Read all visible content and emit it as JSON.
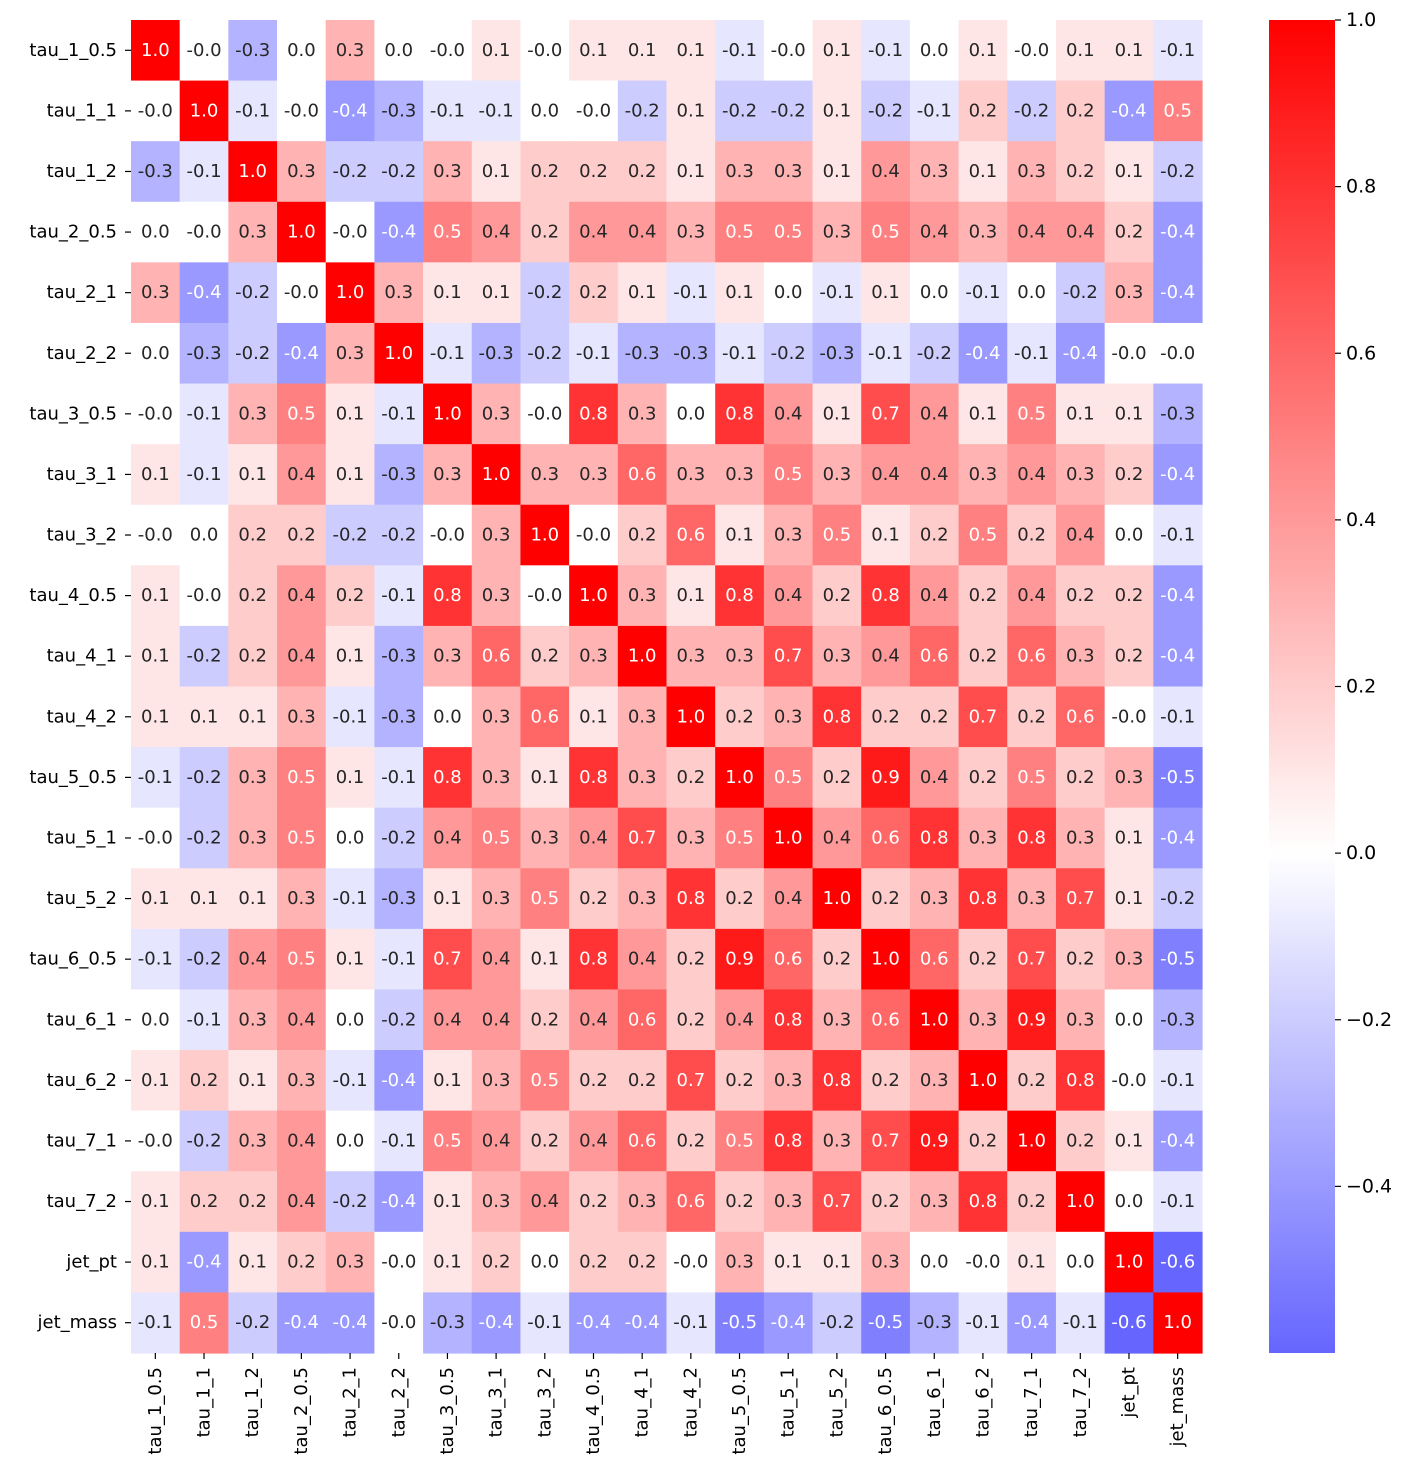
{
  "chart_data": {
    "type": "heatmap",
    "title": "",
    "xlabel": "",
    "ylabel": "",
    "labels": [
      "tau_1_0.5",
      "tau_1_1",
      "tau_1_2",
      "tau_2_0.5",
      "tau_2_1",
      "tau_2_2",
      "tau_3_0.5",
      "tau_3_1",
      "tau_3_2",
      "tau_4_0.5",
      "tau_4_1",
      "tau_4_2",
      "tau_5_0.5",
      "tau_5_1",
      "tau_5_2",
      "tau_6_0.5",
      "tau_6_1",
      "tau_6_2",
      "tau_7_1",
      "tau_7_2",
      "jet_pt",
      "jet_mass"
    ],
    "values": [
      [
        1.0,
        -0.0,
        -0.3,
        0.0,
        0.3,
        0.0,
        -0.0,
        0.1,
        -0.0,
        0.1,
        0.1,
        0.1,
        -0.1,
        -0.0,
        0.1,
        -0.1,
        0.0,
        0.1,
        -0.0,
        0.1,
        0.1,
        -0.1
      ],
      [
        -0.0,
        1.0,
        -0.1,
        -0.0,
        -0.4,
        -0.3,
        -0.1,
        -0.1,
        0.0,
        -0.0,
        -0.2,
        0.1,
        -0.2,
        -0.2,
        0.1,
        -0.2,
        -0.1,
        0.2,
        -0.2,
        0.2,
        -0.4,
        0.5
      ],
      [
        -0.3,
        -0.1,
        1.0,
        0.3,
        -0.2,
        -0.2,
        0.3,
        0.1,
        0.2,
        0.2,
        0.2,
        0.1,
        0.3,
        0.3,
        0.1,
        0.4,
        0.3,
        0.1,
        0.3,
        0.2,
        0.1,
        -0.2
      ],
      [
        0.0,
        -0.0,
        0.3,
        1.0,
        -0.0,
        -0.4,
        0.5,
        0.4,
        0.2,
        0.4,
        0.4,
        0.3,
        0.5,
        0.5,
        0.3,
        0.5,
        0.4,
        0.3,
        0.4,
        0.4,
        0.2,
        -0.4
      ],
      [
        0.3,
        -0.4,
        -0.2,
        -0.0,
        1.0,
        0.3,
        0.1,
        0.1,
        -0.2,
        0.2,
        0.1,
        -0.1,
        0.1,
        0.0,
        -0.1,
        0.1,
        0.0,
        -0.1,
        0.0,
        -0.2,
        0.3,
        -0.4
      ],
      [
        0.0,
        -0.3,
        -0.2,
        -0.4,
        0.3,
        1.0,
        -0.1,
        -0.3,
        -0.2,
        -0.1,
        -0.3,
        -0.3,
        -0.1,
        -0.2,
        -0.3,
        -0.1,
        -0.2,
        -0.4,
        -0.1,
        -0.4,
        -0.0,
        -0.0
      ],
      [
        -0.0,
        -0.1,
        0.3,
        0.5,
        0.1,
        -0.1,
        1.0,
        0.3,
        -0.0,
        0.8,
        0.3,
        0.0,
        0.8,
        0.4,
        0.1,
        0.7,
        0.4,
        0.1,
        0.5,
        0.1,
        0.1,
        -0.3
      ],
      [
        0.1,
        -0.1,
        0.1,
        0.4,
        0.1,
        -0.3,
        0.3,
        1.0,
        0.3,
        0.3,
        0.6,
        0.3,
        0.3,
        0.5,
        0.3,
        0.4,
        0.4,
        0.3,
        0.4,
        0.3,
        0.2,
        -0.4
      ],
      [
        -0.0,
        0.0,
        0.2,
        0.2,
        -0.2,
        -0.2,
        -0.0,
        0.3,
        1.0,
        -0.0,
        0.2,
        0.6,
        0.1,
        0.3,
        0.5,
        0.1,
        0.2,
        0.5,
        0.2,
        0.4,
        0.0,
        -0.1
      ],
      [
        0.1,
        -0.0,
        0.2,
        0.4,
        0.2,
        -0.1,
        0.8,
        0.3,
        -0.0,
        1.0,
        0.3,
        0.1,
        0.8,
        0.4,
        0.2,
        0.8,
        0.4,
        0.2,
        0.4,
        0.2,
        0.2,
        -0.4
      ],
      [
        0.1,
        -0.2,
        0.2,
        0.4,
        0.1,
        -0.3,
        0.3,
        0.6,
        0.2,
        0.3,
        1.0,
        0.3,
        0.3,
        0.7,
        0.3,
        0.4,
        0.6,
        0.2,
        0.6,
        0.3,
        0.2,
        -0.4
      ],
      [
        0.1,
        0.1,
        0.1,
        0.3,
        -0.1,
        -0.3,
        0.0,
        0.3,
        0.6,
        0.1,
        0.3,
        1.0,
        0.2,
        0.3,
        0.8,
        0.2,
        0.2,
        0.7,
        0.2,
        0.6,
        -0.0,
        -0.1
      ],
      [
        -0.1,
        -0.2,
        0.3,
        0.5,
        0.1,
        -0.1,
        0.8,
        0.3,
        0.1,
        0.8,
        0.3,
        0.2,
        1.0,
        0.5,
        0.2,
        0.9,
        0.4,
        0.2,
        0.5,
        0.2,
        0.3,
        -0.5
      ],
      [
        -0.0,
        -0.2,
        0.3,
        0.5,
        0.0,
        -0.2,
        0.4,
        0.5,
        0.3,
        0.4,
        0.7,
        0.3,
        0.5,
        1.0,
        0.4,
        0.6,
        0.8,
        0.3,
        0.8,
        0.3,
        0.1,
        -0.4
      ],
      [
        0.1,
        0.1,
        0.1,
        0.3,
        -0.1,
        -0.3,
        0.1,
        0.3,
        0.5,
        0.2,
        0.3,
        0.8,
        0.2,
        0.4,
        1.0,
        0.2,
        0.3,
        0.8,
        0.3,
        0.7,
        0.1,
        -0.2
      ],
      [
        -0.1,
        -0.2,
        0.4,
        0.5,
        0.1,
        -0.1,
        0.7,
        0.4,
        0.1,
        0.8,
        0.4,
        0.2,
        0.9,
        0.6,
        0.2,
        1.0,
        0.6,
        0.2,
        0.7,
        0.2,
        0.3,
        -0.5
      ],
      [
        0.0,
        -0.1,
        0.3,
        0.4,
        0.0,
        -0.2,
        0.4,
        0.4,
        0.2,
        0.4,
        0.6,
        0.2,
        0.4,
        0.8,
        0.3,
        0.6,
        1.0,
        0.3,
        0.9,
        0.3,
        0.0,
        -0.3
      ],
      [
        0.1,
        0.2,
        0.1,
        0.3,
        -0.1,
        -0.4,
        0.1,
        0.3,
        0.5,
        0.2,
        0.2,
        0.7,
        0.2,
        0.3,
        0.8,
        0.2,
        0.3,
        1.0,
        0.2,
        0.8,
        -0.0,
        -0.1
      ],
      [
        -0.0,
        -0.2,
        0.3,
        0.4,
        0.0,
        -0.1,
        0.5,
        0.4,
        0.2,
        0.4,
        0.6,
        0.2,
        0.5,
        0.8,
        0.3,
        0.7,
        0.9,
        0.2,
        1.0,
        0.2,
        0.1,
        -0.4
      ],
      [
        0.1,
        0.2,
        0.2,
        0.4,
        -0.2,
        -0.4,
        0.1,
        0.3,
        0.4,
        0.2,
        0.3,
        0.6,
        0.2,
        0.3,
        0.7,
        0.2,
        0.3,
        0.8,
        0.2,
        1.0,
        0.0,
        -0.1
      ],
      [
        0.1,
        -0.4,
        0.1,
        0.2,
        0.3,
        -0.0,
        0.1,
        0.2,
        0.0,
        0.2,
        0.2,
        -0.0,
        0.3,
        0.1,
        0.1,
        0.3,
        0.0,
        -0.0,
        0.1,
        0.0,
        1.0,
        -0.6
      ],
      [
        -0.1,
        0.5,
        -0.2,
        -0.4,
        -0.4,
        -0.0,
        -0.3,
        -0.4,
        -0.1,
        -0.4,
        -0.4,
        -0.1,
        -0.5,
        -0.4,
        -0.2,
        -0.5,
        -0.3,
        -0.1,
        -0.4,
        -0.1,
        -0.6,
        1.0
      ]
    ],
    "colormap": {
      "low": "#6666ff",
      "mid": "#ffffff",
      "high": "#ff0000"
    },
    "vmin": -0.6,
    "vcenter": 0.0,
    "vmax": 1.0,
    "colorbar": {
      "ticks": [
        1.0,
        0.8,
        0.6,
        0.4,
        0.2,
        0.0,
        -0.2,
        -0.4
      ],
      "tick_labels": [
        "1.0",
        "0.8",
        "0.6",
        "0.4",
        "0.2",
        "0.0",
        "−0.2",
        "−0.4"
      ]
    },
    "grid": false,
    "legend": "colorbar-right"
  }
}
